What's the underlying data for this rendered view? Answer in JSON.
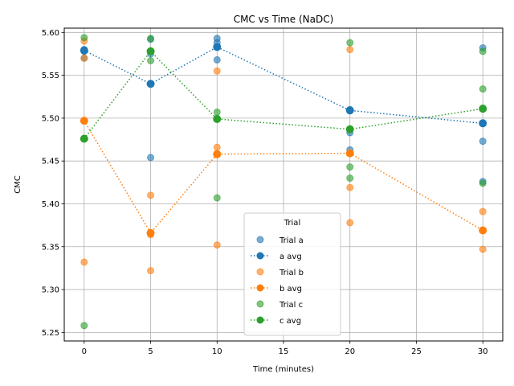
{
  "chart_data": {
    "type": "scatter",
    "title": "CMC vs Time (NaDC)",
    "xlabel": "Time (minutes)",
    "ylabel": "CMC",
    "xlim": [
      -1.5,
      31.5
    ],
    "ylim": [
      5.24,
      5.605
    ],
    "xticks": [
      0,
      5,
      10,
      15,
      20,
      25,
      30
    ],
    "yticks": [
      5.25,
      5.3,
      5.35,
      5.4,
      5.45,
      5.5,
      5.55,
      5.6
    ],
    "grid": true,
    "legend": {
      "title": "Trial",
      "placement": "lower center"
    },
    "series": [
      {
        "name": "Trial a",
        "kind": "scatter",
        "color": "#1f77b4",
        "points": [
          [
            0,
            5.58
          ],
          [
            0,
            5.578
          ],
          [
            0,
            5.57
          ],
          [
            5,
            5.592
          ],
          [
            5,
            5.575
          ],
          [
            5,
            5.454
          ],
          [
            10,
            5.593
          ],
          [
            10,
            5.588
          ],
          [
            10,
            5.568
          ],
          [
            20,
            5.51
          ],
          [
            20,
            5.483
          ],
          [
            20,
            5.463
          ],
          [
            30,
            5.582
          ],
          [
            30,
            5.473
          ],
          [
            30,
            5.426
          ]
        ]
      },
      {
        "name": "a avg",
        "kind": "line",
        "color": "#1f77b4",
        "points": [
          [
            0,
            5.579
          ],
          [
            5,
            5.54
          ],
          [
            10,
            5.583
          ],
          [
            20,
            5.509
          ],
          [
            30,
            5.494
          ]
        ]
      },
      {
        "name": "Trial b",
        "kind": "scatter",
        "color": "#ff7f0e",
        "points": [
          [
            0,
            5.59
          ],
          [
            0,
            5.57
          ],
          [
            0,
            5.497
          ],
          [
            0,
            5.332
          ],
          [
            5,
            5.41
          ],
          [
            5,
            5.364
          ],
          [
            5,
            5.322
          ],
          [
            10,
            5.555
          ],
          [
            10,
            5.466
          ],
          [
            10,
            5.352
          ],
          [
            20,
            5.58
          ],
          [
            20,
            5.419
          ],
          [
            20,
            5.378
          ],
          [
            30,
            5.391
          ],
          [
            30,
            5.347
          ]
        ]
      },
      {
        "name": "b avg",
        "kind": "line",
        "color": "#ff7f0e",
        "points": [
          [
            0,
            5.497
          ],
          [
            5,
            5.366
          ],
          [
            10,
            5.458
          ],
          [
            20,
            5.459
          ],
          [
            30,
            5.369
          ]
        ]
      },
      {
        "name": "Trial c",
        "kind": "scatter",
        "color": "#2ca02c",
        "points": [
          [
            0,
            5.594
          ],
          [
            0,
            5.258
          ],
          [
            5,
            5.593
          ],
          [
            5,
            5.567
          ],
          [
            10,
            5.507
          ],
          [
            10,
            5.407
          ],
          [
            20,
            5.588
          ],
          [
            20,
            5.443
          ],
          [
            20,
            5.43
          ],
          [
            30,
            5.578
          ],
          [
            30,
            5.534
          ],
          [
            30,
            5.424
          ]
        ]
      },
      {
        "name": "c avg",
        "kind": "line",
        "color": "#2ca02c",
        "points": [
          [
            0,
            5.476
          ],
          [
            5,
            5.578
          ],
          [
            10,
            5.499
          ],
          [
            20,
            5.487
          ],
          [
            30,
            5.511
          ]
        ]
      }
    ]
  }
}
